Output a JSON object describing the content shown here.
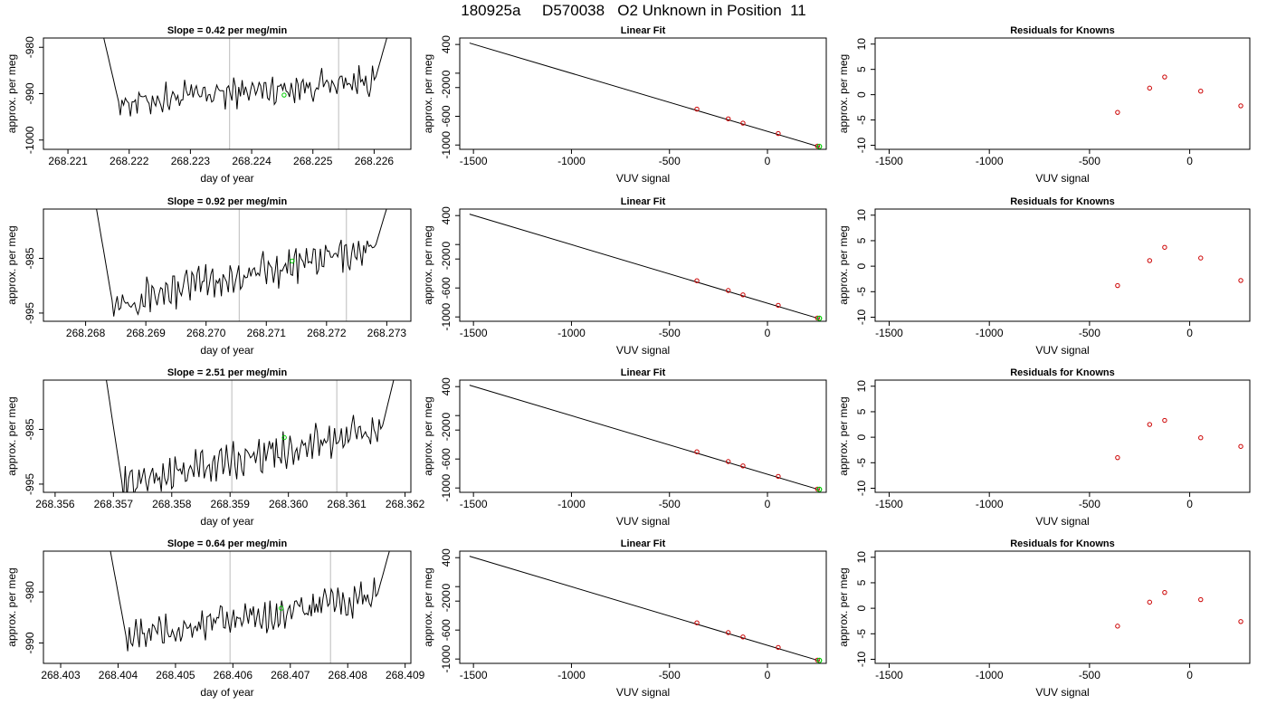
{
  "main_title": "180925a     D570038   O2 Unknown in Position  11",
  "colors": {
    "trace": "#000000",
    "marker": "#00cc00",
    "point": "#cc0000",
    "guide": "#bbbbbb",
    "frame": "#000000"
  },
  "chart_data": [
    {
      "type": "line",
      "title": "Slope =  0.42  per meg/min",
      "xlabel": "day of year",
      "ylabel": "approx. per meg",
      "xlim": [
        268.2206,
        268.2266
      ],
      "ylim": [
        -1002,
        -978
      ],
      "xticks": [
        {
          "v": 268.221,
          "label": "268.221"
        },
        {
          "v": 268.222,
          "label": "268.222"
        },
        {
          "v": 268.223,
          "label": "268.223"
        },
        {
          "v": 268.224,
          "label": "268.224"
        },
        {
          "v": 268.225,
          "label": "268.225"
        },
        {
          "v": 268.226,
          "label": "268.226"
        }
      ],
      "yticks": [
        {
          "v": -980,
          "label": "-980"
        },
        {
          "v": -990,
          "label": "-990"
        },
        {
          "v": -1000,
          "label": "-1000"
        }
      ],
      "vlines": [
        268.22364,
        268.22542
      ],
      "marker": {
        "x": 268.22453,
        "y": -990.3
      },
      "trace": {
        "x_start": 268.22155,
        "x_end": 268.22625,
        "start": -976,
        "mid_start": -992,
        "mid_end": -987,
        "end": -976,
        "noise": 2.5
      }
    },
    {
      "type": "line",
      "title": "Slope =  0.92  per meg/min",
      "xlabel": "day of year",
      "ylabel": "approx. per meg",
      "xlim": [
        268.2673,
        268.2734
      ],
      "ylim": [
        -996.5,
        -976
      ],
      "xticks": [
        {
          "v": 268.268,
          "label": "268.268"
        },
        {
          "v": 268.269,
          "label": "268.269"
        },
        {
          "v": 268.27,
          "label": "268.270"
        },
        {
          "v": 268.271,
          "label": "268.271"
        },
        {
          "v": 268.272,
          "label": "268.272"
        },
        {
          "v": 268.273,
          "label": "268.273"
        }
      ],
      "yticks": [
        {
          "v": -985,
          "label": "-985"
        },
        {
          "v": -995,
          "label": "-995"
        }
      ],
      "vlines": [
        268.27055,
        268.27233
      ],
      "marker": {
        "x": 268.27143,
        "y": -985.5
      },
      "trace": {
        "x_start": 268.26815,
        "x_end": 268.27305,
        "start": -974,
        "mid_start": -993,
        "mid_end": -983,
        "end": -974,
        "noise": 2.5
      }
    },
    {
      "type": "line",
      "title": "Slope =  2.51  per meg/min",
      "xlabel": "day of year",
      "ylabel": "approx. per meg",
      "xlim": [
        268.3558,
        268.3621
      ],
      "ylim": [
        -996.5,
        -976
      ],
      "xticks": [
        {
          "v": 268.356,
          "label": "268.356"
        },
        {
          "v": 268.357,
          "label": "268.357"
        },
        {
          "v": 268.358,
          "label": "268.358"
        },
        {
          "v": 268.359,
          "label": "268.359"
        },
        {
          "v": 268.36,
          "label": "268.360"
        },
        {
          "v": 268.361,
          "label": "268.361"
        },
        {
          "v": 268.362,
          "label": "268.362"
        }
      ],
      "yticks": [
        {
          "v": -985,
          "label": "-985"
        },
        {
          "v": -995,
          "label": "-995"
        }
      ],
      "vlines": [
        268.35903,
        268.36083
      ],
      "marker": {
        "x": 268.35993,
        "y": -986.5
      },
      "trace": {
        "x_start": 268.35685,
        "x_end": 268.36185,
        "start": -974,
        "mid_start": -995,
        "mid_end": -985,
        "end": -974,
        "noise": 2.5
      }
    },
    {
      "type": "line",
      "title": "Slope =  0.64  per meg/min",
      "xlabel": "day of year",
      "ylabel": "approx. per meg",
      "xlim": [
        268.4027,
        268.4091
      ],
      "ylim": [
        -994,
        -972
      ],
      "xticks": [
        {
          "v": 268.403,
          "label": "268.403"
        },
        {
          "v": 268.404,
          "label": "268.404"
        },
        {
          "v": 268.405,
          "label": "268.405"
        },
        {
          "v": 268.406,
          "label": "268.406"
        },
        {
          "v": 268.407,
          "label": "268.407"
        },
        {
          "v": 268.408,
          "label": "268.408"
        },
        {
          "v": 268.409,
          "label": "268.409"
        }
      ],
      "yticks": [
        {
          "v": -980,
          "label": "-980"
        },
        {
          "v": -990,
          "label": "-990"
        }
      ],
      "vlines": [
        268.40595,
        268.4077
      ],
      "marker": {
        "x": 268.40684,
        "y": -983.2
      },
      "trace": {
        "x_start": 268.40385,
        "x_end": 268.40875,
        "start": -971,
        "mid_start": -989,
        "mid_end": -981,
        "end": -971,
        "noise": 2.5
      }
    },
    {
      "type": "scatter",
      "title": "Linear Fit",
      "xlabel": "VUV signal",
      "ylabel": "approx. per meg",
      "xlim": [
        -1570,
        300
      ],
      "ylim": [
        -1060,
        490
      ],
      "xticks": [
        {
          "v": -1500,
          "label": "-1500"
        },
        {
          "v": -1000,
          "label": "-1000"
        },
        {
          "v": -500,
          "label": "-500"
        },
        {
          "v": 0,
          "label": "0"
        }
      ],
      "yticks": [
        {
          "v": -1000,
          "label": "-1000"
        },
        {
          "v": -600,
          "label": "-600"
        },
        {
          "v": -200,
          "label": "-200"
        },
        {
          "v": 0,
          "label": "0"
        },
        {
          "v": 400,
          "label": "400"
        }
      ],
      "fit": {
        "x": [
          -1520,
          265
        ],
        "y": [
          420,
          -1025
        ]
      },
      "points": {
        "x": [
          -360,
          -200,
          -125,
          55,
          255
        ],
        "y": [
          -500,
          -635,
          -695,
          -840,
          -1015
        ]
      },
      "marker": {
        "x": 265,
        "y": -1020
      }
    },
    {
      "type": "scatter",
      "title": "Linear Fit",
      "xlabel": "VUV signal",
      "ylabel": "approx. per meg",
      "xlim": [
        -1570,
        300
      ],
      "ylim": [
        -1060,
        490
      ],
      "xticks": [
        {
          "v": -1500,
          "label": "-1500"
        },
        {
          "v": -1000,
          "label": "-1000"
        },
        {
          "v": -500,
          "label": "-500"
        },
        {
          "v": 0,
          "label": "0"
        }
      ],
      "yticks": [
        {
          "v": -1000,
          "label": "-1000"
        },
        {
          "v": -600,
          "label": "-600"
        },
        {
          "v": -200,
          "label": "-200"
        },
        {
          "v": 0,
          "label": "0"
        },
        {
          "v": 400,
          "label": "400"
        }
      ],
      "fit": {
        "x": [
          -1520,
          265
        ],
        "y": [
          420,
          -1025
        ]
      },
      "points": {
        "x": [
          -360,
          -200,
          -125,
          55,
          255
        ],
        "y": [
          -500,
          -635,
          -695,
          -840,
          -1015
        ]
      },
      "marker": {
        "x": 265,
        "y": -1020
      }
    },
    {
      "type": "scatter",
      "title": "Linear Fit",
      "xlabel": "VUV signal",
      "ylabel": "approx. per meg",
      "xlim": [
        -1570,
        300
      ],
      "ylim": [
        -1060,
        490
      ],
      "xticks": [
        {
          "v": -1500,
          "label": "-1500"
        },
        {
          "v": -1000,
          "label": "-1000"
        },
        {
          "v": -500,
          "label": "-500"
        },
        {
          "v": 0,
          "label": "0"
        }
      ],
      "yticks": [
        {
          "v": -1000,
          "label": "-1000"
        },
        {
          "v": -600,
          "label": "-600"
        },
        {
          "v": -200,
          "label": "-200"
        },
        {
          "v": 0,
          "label": "0"
        },
        {
          "v": 400,
          "label": "400"
        }
      ],
      "fit": {
        "x": [
          -1520,
          265
        ],
        "y": [
          420,
          -1025
        ]
      },
      "points": {
        "x": [
          -360,
          -200,
          -125,
          55,
          255
        ],
        "y": [
          -500,
          -635,
          -695,
          -840,
          -1015
        ]
      },
      "marker": {
        "x": 265,
        "y": -1020
      }
    },
    {
      "type": "scatter",
      "title": "Linear Fit",
      "xlabel": "VUV signal",
      "ylabel": "approx. per meg",
      "xlim": [
        -1570,
        300
      ],
      "ylim": [
        -1060,
        490
      ],
      "xticks": [
        {
          "v": -1500,
          "label": "-1500"
        },
        {
          "v": -1000,
          "label": "-1000"
        },
        {
          "v": -500,
          "label": "-500"
        },
        {
          "v": 0,
          "label": "0"
        }
      ],
      "yticks": [
        {
          "v": -1000,
          "label": "-1000"
        },
        {
          "v": -600,
          "label": "-600"
        },
        {
          "v": -200,
          "label": "-200"
        },
        {
          "v": 0,
          "label": "0"
        },
        {
          "v": 400,
          "label": "400"
        }
      ],
      "fit": {
        "x": [
          -1520,
          265
        ],
        "y": [
          420,
          -1025
        ]
      },
      "points": {
        "x": [
          -360,
          -200,
          -125,
          55,
          255
        ],
        "y": [
          -500,
          -635,
          -695,
          -840,
          -1015
        ]
      },
      "marker": {
        "x": 265,
        "y": -1020
      }
    },
    {
      "type": "scatter",
      "title": "Residuals for Knowns",
      "xlabel": "VUV signal",
      "ylabel": "approx. per meg",
      "xlim": [
        -1570,
        300
      ],
      "ylim": [
        -10.8,
        11.2
      ],
      "xticks": [
        {
          "v": -1500,
          "label": "-1500"
        },
        {
          "v": -1000,
          "label": "-1000"
        },
        {
          "v": -500,
          "label": "-500"
        },
        {
          "v": 0,
          "label": "0"
        }
      ],
      "yticks": [
        {
          "v": -10,
          "label": "-10"
        },
        {
          "v": -5,
          "label": "-5"
        },
        {
          "v": 0,
          "label": "0"
        },
        {
          "v": 5,
          "label": "5"
        },
        {
          "v": 10,
          "label": "10"
        }
      ],
      "points": {
        "x": [
          -360,
          -200,
          -125,
          55,
          255
        ],
        "y": [
          -3.5,
          1.3,
          3.5,
          0.7,
          -2.2
        ]
      }
    },
    {
      "type": "scatter",
      "title": "Residuals for Knowns",
      "xlabel": "VUV signal",
      "ylabel": "approx. per meg",
      "xlim": [
        -1570,
        300
      ],
      "ylim": [
        -10.8,
        11.2
      ],
      "xticks": [
        {
          "v": -1500,
          "label": "-1500"
        },
        {
          "v": -1000,
          "label": "-1000"
        },
        {
          "v": -500,
          "label": "-500"
        },
        {
          "v": 0,
          "label": "0"
        }
      ],
      "yticks": [
        {
          "v": -10,
          "label": "-10"
        },
        {
          "v": -5,
          "label": "-5"
        },
        {
          "v": 0,
          "label": "0"
        },
        {
          "v": 5,
          "label": "5"
        },
        {
          "v": 10,
          "label": "10"
        }
      ],
      "points": {
        "x": [
          -360,
          -200,
          -125,
          55,
          255
        ],
        "y": [
          -3.8,
          1.1,
          3.7,
          1.6,
          -2.8
        ]
      }
    },
    {
      "type": "scatter",
      "title": "Residuals for Knowns",
      "xlabel": "VUV signal",
      "ylabel": "approx. per meg",
      "xlim": [
        -1570,
        300
      ],
      "ylim": [
        -10.8,
        11.2
      ],
      "xticks": [
        {
          "v": -1500,
          "label": "-1500"
        },
        {
          "v": -1000,
          "label": "-1000"
        },
        {
          "v": -500,
          "label": "-500"
        },
        {
          "v": 0,
          "label": "0"
        }
      ],
      "yticks": [
        {
          "v": -10,
          "label": "-10"
        },
        {
          "v": -5,
          "label": "-5"
        },
        {
          "v": 0,
          "label": "0"
        },
        {
          "v": 5,
          "label": "5"
        },
        {
          "v": 10,
          "label": "10"
        }
      ],
      "points": {
        "x": [
          -360,
          -200,
          -125,
          55,
          255
        ],
        "y": [
          -4.0,
          2.5,
          3.3,
          -0.1,
          -1.8
        ]
      }
    },
    {
      "type": "scatter",
      "title": "Residuals for Knowns",
      "xlabel": "VUV signal",
      "ylabel": "approx. per meg",
      "xlim": [
        -1570,
        300
      ],
      "ylim": [
        -10.8,
        11.2
      ],
      "xticks": [
        {
          "v": -1500,
          "label": "-1500"
        },
        {
          "v": -1000,
          "label": "-1000"
        },
        {
          "v": -500,
          "label": "-500"
        },
        {
          "v": 0,
          "label": "0"
        }
      ],
      "yticks": [
        {
          "v": -10,
          "label": "-10"
        },
        {
          "v": -5,
          "label": "-5"
        },
        {
          "v": 0,
          "label": "0"
        },
        {
          "v": 5,
          "label": "5"
        },
        {
          "v": 10,
          "label": "10"
        }
      ],
      "points": {
        "x": [
          -360,
          -200,
          -125,
          55,
          255
        ],
        "y": [
          -3.5,
          1.2,
          3.1,
          1.7,
          -2.6
        ]
      }
    }
  ]
}
